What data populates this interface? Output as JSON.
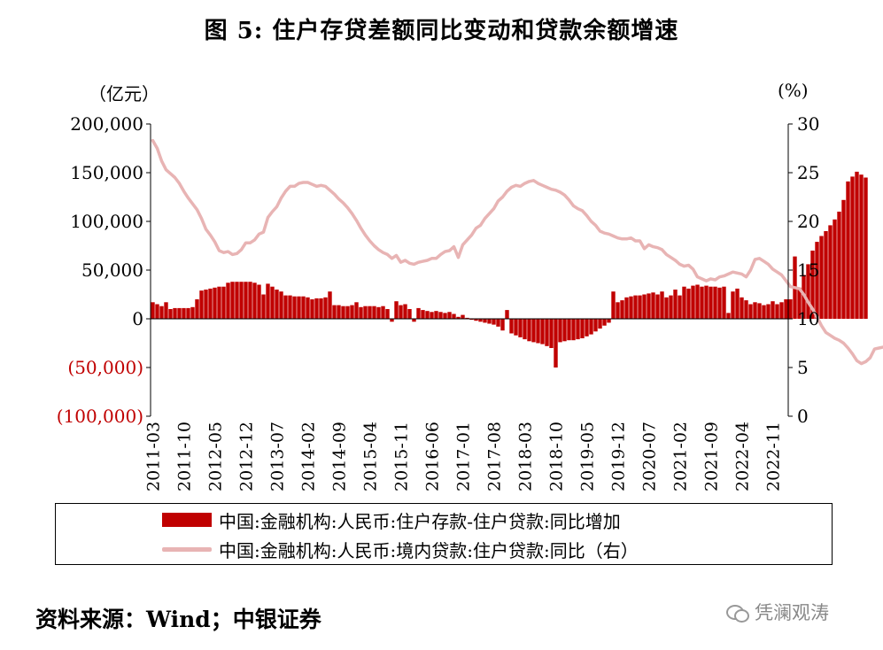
{
  "title": "图 5: 住户存贷差额同比变动和贷款余额增速",
  "source": "资料来源：Wind；中银证券",
  "watermark": "凭澜观涛",
  "watermark_icon": "wechat-icon",
  "chart_data": {
    "type": "bar+line",
    "left_axis": {
      "unit": "（亿元）",
      "range": [
        -100000,
        200000
      ],
      "ticks": [
        200000,
        150000,
        100000,
        50000,
        0,
        -50000,
        -100000
      ],
      "tick_labels": [
        "200,000",
        "150,000",
        "100,000",
        "50,000",
        "0",
        "(50,000)",
        "(100,000)"
      ],
      "negative_color": "#c00000"
    },
    "right_axis": {
      "unit": "(%)",
      "range": [
        0,
        30
      ],
      "ticks": [
        30,
        25,
        20,
        15,
        10,
        5,
        0
      ],
      "tick_labels": [
        "30",
        "25",
        "20",
        "15",
        "10",
        "5",
        "0"
      ]
    },
    "x_start": "2011-03",
    "x_end": "2023-02",
    "x_tick_labels": [
      "2011-03",
      "2011-10",
      "2012-05",
      "2012-12",
      "2013-07",
      "2014-02",
      "2014-09",
      "2015-04",
      "2015-11",
      "2016-06",
      "2017-01",
      "2017-08",
      "2018-03",
      "2018-10",
      "2019-05",
      "2019-12",
      "2020-07",
      "2021-02",
      "2021-09",
      "2022-04",
      "2022-11"
    ],
    "legend_position": "bottom",
    "series": [
      {
        "name": "中国:金融机构:人民币:住户存款-住户贷款:同比增加",
        "axis": "left",
        "kind": "bar",
        "color": "#c00000",
        "values": [
          17000,
          15000,
          13000,
          17000,
          10000,
          11000,
          11000,
          11000,
          11000,
          12000,
          20000,
          29000,
          30000,
          31000,
          32000,
          33000,
          33000,
          37000,
          38000,
          38000,
          38000,
          38000,
          38000,
          37000,
          35000,
          25000,
          36000,
          33000,
          30000,
          28000,
          24000,
          24000,
          23000,
          23000,
          23000,
          22000,
          20000,
          21000,
          21000,
          22000,
          28000,
          14000,
          14000,
          13000,
          13000,
          14000,
          17000,
          12000,
          13000,
          13000,
          13000,
          12000,
          13000,
          10000,
          -3000,
          18000,
          14000,
          15000,
          10000,
          -3000,
          11000,
          9000,
          8000,
          7000,
          8000,
          7000,
          6000,
          7000,
          5000,
          2000,
          4000,
          1000,
          -1000,
          -2000,
          -3000,
          -4000,
          -5000,
          -6000,
          -8000,
          -12000,
          9000,
          -15000,
          -17000,
          -19000,
          -21000,
          -23000,
          -24000,
          -25000,
          -26000,
          -28000,
          -30000,
          -50000,
          -24000,
          -23000,
          -22000,
          -22000,
          -21000,
          -20000,
          -18000,
          -16000,
          -13000,
          -10000,
          -7000,
          -4000,
          28000,
          17000,
          19000,
          22000,
          23000,
          24000,
          24000,
          25000,
          26000,
          27000,
          25000,
          28000,
          22000,
          24000,
          30000,
          24000,
          33000,
          31000,
          34000,
          35000,
          33000,
          34000,
          33000,
          33000,
          32000,
          33000,
          6000,
          28000,
          31000,
          22000,
          19000,
          15000,
          17000,
          16000,
          14000,
          15000,
          18000,
          15000,
          17000,
          20000,
          20000,
          64000,
          32000,
          45000,
          56000,
          70000,
          79000,
          85000,
          90000,
          96000,
          102000,
          110000,
          122000,
          141000,
          146000,
          151000,
          148000,
          145000
        ]
      },
      {
        "name": "中国:金融机构:人民币:境内贷款:住户贷款:同比（右）",
        "axis": "right",
        "kind": "line",
        "color": "#e8b4b4",
        "values": [
          28.3,
          27.5,
          26.2,
          25.3,
          24.9,
          24.5,
          23.9,
          23.1,
          22.4,
          21.8,
          21.2,
          20.3,
          19.2,
          18.6,
          17.9,
          17.0,
          16.8,
          16.9,
          16.6,
          16.7,
          17.1,
          17.8,
          17.8,
          18.1,
          18.7,
          18.9,
          20.4,
          21.0,
          21.5,
          22.4,
          23.1,
          23.6,
          23.6,
          23.9,
          24.0,
          24.0,
          23.8,
          23.6,
          23.7,
          23.6,
          23.2,
          22.8,
          22.3,
          21.9,
          21.4,
          20.8,
          20.1,
          19.3,
          18.6,
          18.0,
          17.5,
          17.1,
          16.8,
          16.6,
          16.2,
          16.5,
          15.8,
          16.0,
          15.7,
          15.6,
          15.8,
          15.9,
          16.0,
          16.2,
          16.2,
          16.6,
          16.9,
          17.0,
          17.4,
          16.3,
          17.6,
          18.1,
          18.6,
          19.3,
          19.6,
          20.3,
          20.8,
          21.3,
          22.1,
          22.5,
          23.1,
          23.5,
          23.7,
          23.6,
          23.9,
          24.1,
          24.2,
          23.9,
          23.7,
          23.5,
          23.3,
          23.2,
          23.0,
          22.7,
          22.2,
          21.6,
          21.3,
          21.1,
          20.6,
          20.0,
          19.6,
          19.0,
          18.8,
          18.7,
          18.5,
          18.3,
          18.2,
          18.2,
          18.3,
          18.0,
          18.0,
          17.2,
          17.6,
          17.4,
          17.3,
          17.1,
          16.6,
          16.3,
          16.0,
          15.6,
          15.4,
          15.5,
          15.1,
          14.3,
          14.1,
          13.9,
          14.1,
          14.0,
          14.3,
          14.4,
          14.6,
          14.8,
          14.7,
          14.6,
          14.3,
          15.0,
          16.1,
          16.2,
          15.9,
          15.6,
          15.1,
          14.8,
          14.5,
          13.9,
          13.3,
          13.2,
          13.1,
          12.5,
          11.7,
          11.0,
          10.2,
          9.3,
          8.6,
          8.3,
          8.0,
          7.8,
          7.5,
          7.0,
          6.4,
          5.7,
          5.4,
          5.6,
          6.0,
          6.9,
          7.0,
          7.1
        ]
      }
    ]
  }
}
